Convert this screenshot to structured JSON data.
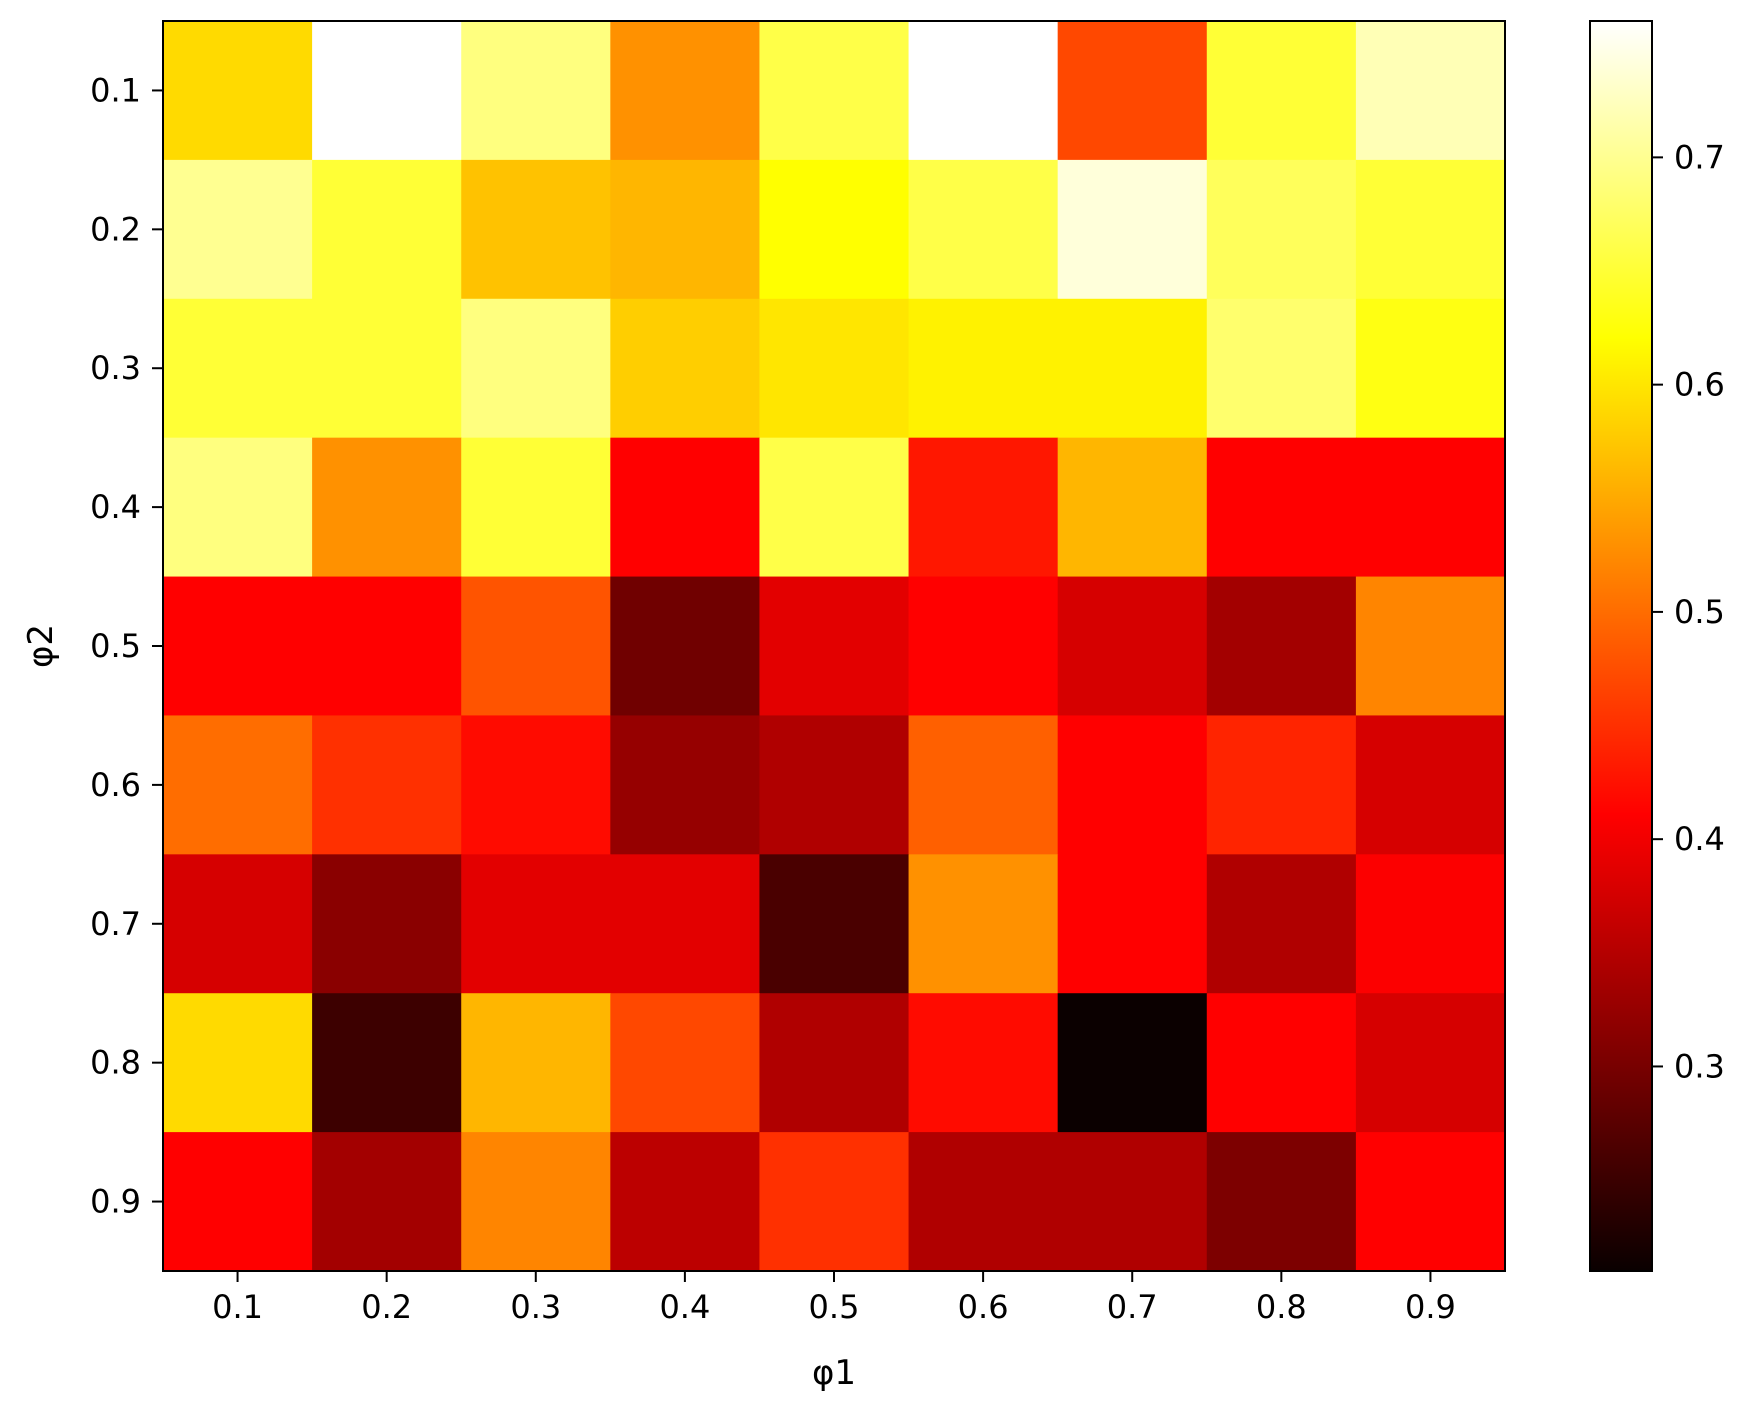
{
  "chart_data": {
    "type": "heatmap",
    "title": "",
    "xlabel": "φ1",
    "ylabel": "φ2",
    "x_categories": [
      "0.1",
      "0.2",
      "0.3",
      "0.4",
      "0.5",
      "0.6",
      "0.7",
      "0.8",
      "0.9"
    ],
    "y_categories": [
      "0.1",
      "0.2",
      "0.3",
      "0.4",
      "0.5",
      "0.6",
      "0.7",
      "0.8",
      "0.9"
    ],
    "values": [
      [
        0.59,
        0.76,
        0.69,
        0.53,
        0.66,
        0.76,
        0.47,
        0.65,
        0.72
      ],
      [
        0.7,
        0.65,
        0.57,
        0.56,
        0.62,
        0.66,
        0.74,
        0.67,
        0.65
      ],
      [
        0.65,
        0.65,
        0.69,
        0.58,
        0.6,
        0.61,
        0.61,
        0.68,
        0.63
      ],
      [
        0.69,
        0.53,
        0.65,
        0.41,
        0.66,
        0.43,
        0.56,
        0.41,
        0.41
      ],
      [
        0.41,
        0.41,
        0.48,
        0.29,
        0.38,
        0.41,
        0.37,
        0.33,
        0.52
      ],
      [
        0.5,
        0.45,
        0.42,
        0.32,
        0.34,
        0.49,
        0.41,
        0.44,
        0.37
      ],
      [
        0.37,
        0.31,
        0.38,
        0.38,
        0.26,
        0.53,
        0.41,
        0.34,
        0.4
      ],
      [
        0.59,
        0.25,
        0.56,
        0.47,
        0.34,
        0.42,
        0.21,
        0.41,
        0.37
      ],
      [
        0.41,
        0.33,
        0.52,
        0.35,
        0.45,
        0.34,
        0.34,
        0.3,
        0.41
      ]
    ],
    "colormap": "hot",
    "colorbar_range": [
      0.21,
      0.76
    ],
    "colorbar_ticks": [
      "0.3",
      "0.4",
      "0.5",
      "0.6",
      "0.7"
    ],
    "colorbar_tick_values": [
      0.3,
      0.4,
      0.5,
      0.6,
      0.7
    ],
    "grid": false,
    "legend": "colorbar-right"
  }
}
